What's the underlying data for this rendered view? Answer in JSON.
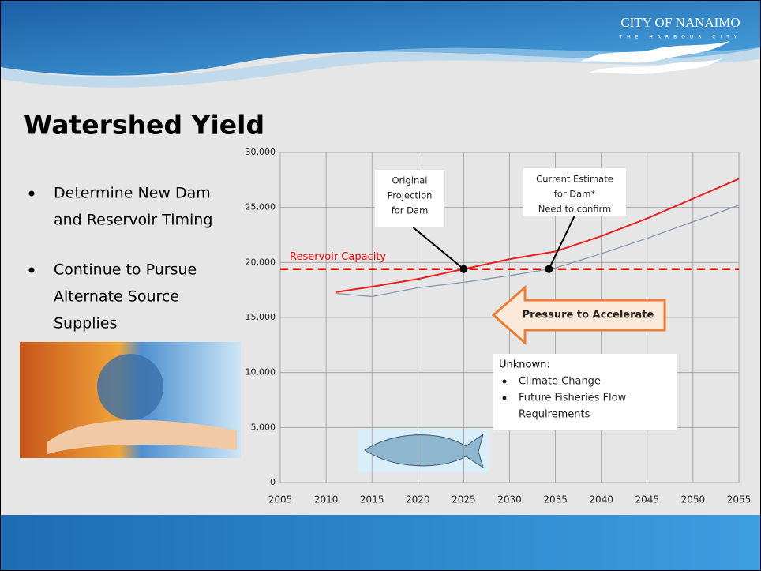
{
  "header": {
    "logo_title": "CITY OF NANAIMO",
    "logo_subtitle": "THE HARBOUR CITY"
  },
  "title": "Watershed Yield",
  "bullets": [
    [
      "Determine New Dam",
      "and Reservoir Timing"
    ],
    [
      "Continue to Pursue",
      "Alternate Source",
      "Supplies"
    ]
  ],
  "chart_data": {
    "type": "line",
    "x": [
      2011,
      2015,
      2020,
      2025,
      2030,
      2035,
      2040,
      2045,
      2050,
      2055
    ],
    "series": [
      {
        "color": "#e8201f",
        "values": [
          17300,
          17800,
          18500,
          19400,
          20300,
          21000,
          22400,
          24000,
          25800,
          27600
        ]
      },
      {
        "color": "#8497b0",
        "values": [
          17200,
          16900,
          17700,
          18200,
          18800,
          19500,
          20800,
          22200,
          23700,
          25200
        ]
      }
    ],
    "reference_line": {
      "name": "Reservoir Capacity",
      "value": 19400,
      "color": "#ff0000"
    },
    "xlim": [
      2005,
      2055
    ],
    "xticks": [
      2005,
      2010,
      2015,
      2020,
      2025,
      2030,
      2035,
      2040,
      2045,
      2050,
      2055
    ],
    "ylim": [
      0,
      30000
    ],
    "yticks": [
      0,
      {
        "value": 5000,
        "label": "5,000"
      },
      {
        "value": 10000,
        "label": "10,000"
      },
      {
        "value": 15000,
        "label": "15,000"
      },
      {
        "value": 20000,
        "label": "20,000"
      },
      {
        "value": 25000,
        "label": "25,000"
      },
      {
        "value": 30000,
        "label": "30,000"
      }
    ],
    "grid": true,
    "callouts": [
      {
        "lines": [
          "Original",
          "Projection",
          "for Dam"
        ]
      },
      {
        "lines": [
          "Current Estimate",
          "for Dam*",
          "Need to confirm"
        ]
      }
    ],
    "arrow_label": "Pressure to Accelerate",
    "unknown": {
      "heading": "Unknown:",
      "items": [
        [
          "Climate Change"
        ],
        [
          "Future Fisheries Flow",
          "Requirements"
        ]
      ]
    }
  }
}
